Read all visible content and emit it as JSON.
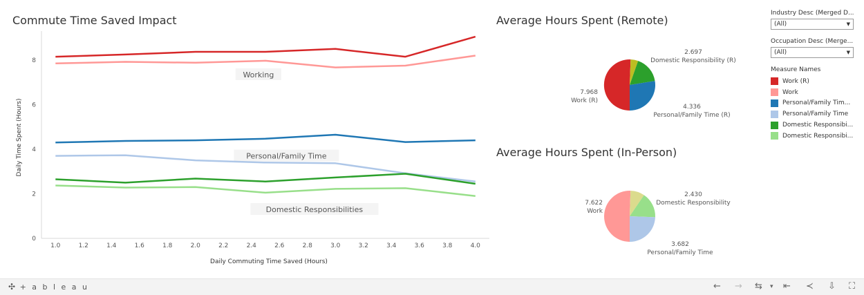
{
  "titles": {
    "line": "Commute Time Saved Impact",
    "remote": "Average Hours Spent (Remote)",
    "inperson": "Average Hours Spent (In-Person)"
  },
  "chart_data": [
    {
      "type": "line",
      "title": "Commute Time Saved Impact",
      "xlabel": "Daily Commuting Time Saved (Hours)",
      "ylabel": "Daily Time Spent (Hours)",
      "xlim": [
        0.9,
        4.1
      ],
      "ylim": [
        0,
        9.3
      ],
      "xticks": [
        "1.0",
        "1.2",
        "1.4",
        "1.6",
        "1.8",
        "2.0",
        "2.2",
        "2.4",
        "2.6",
        "2.8",
        "3.0",
        "3.2",
        "3.4",
        "3.6",
        "3.8",
        "4.0"
      ],
      "yticks": [
        "0",
        "2",
        "4",
        "6",
        "8"
      ],
      "x": [
        1.0,
        1.5,
        2.0,
        2.5,
        3.0,
        3.5,
        4.0
      ],
      "series": [
        {
          "name": "Work (R)",
          "color": "#d62728",
          "values": [
            8.15,
            8.25,
            8.37,
            8.37,
            8.5,
            8.15,
            9.05
          ]
        },
        {
          "name": "Work",
          "color": "#ff9896",
          "values": [
            7.85,
            7.92,
            7.88,
            7.97,
            7.67,
            7.75,
            8.2
          ]
        },
        {
          "name": "Personal/Family Time (R)",
          "color": "#1f77b4",
          "values": [
            4.3,
            4.37,
            4.4,
            4.47,
            4.65,
            4.32,
            4.4
          ]
        },
        {
          "name": "Personal/Family Time",
          "color": "#aec7e8",
          "values": [
            3.7,
            3.73,
            3.5,
            3.4,
            3.37,
            2.92,
            2.55
          ]
        },
        {
          "name": "Domestic Responsibility (R)",
          "color": "#2ca02c",
          "values": [
            2.65,
            2.5,
            2.68,
            2.55,
            2.73,
            2.9,
            2.45
          ]
        },
        {
          "name": "Domestic Responsibility",
          "color": "#98df8a",
          "values": [
            2.37,
            2.28,
            2.3,
            2.05,
            2.22,
            2.25,
            1.9
          ]
        }
      ],
      "annotations": [
        {
          "text": "Working",
          "x": 2.45,
          "y": 7.35
        },
        {
          "text": "Personal/Family Time",
          "x": 2.65,
          "y": 3.7
        },
        {
          "text": "Domestic Responsibilities",
          "x": 2.85,
          "y": 1.3
        }
      ]
    },
    {
      "type": "pie",
      "title": "Average Hours Spent (Remote)",
      "slices": [
        {
          "label": "Work (R)",
          "value": 7.968,
          "color": "#d62728"
        },
        {
          "label": "Personal/Family Time (R)",
          "value": 4.336,
          "color": "#1f77b4"
        },
        {
          "label": "Domestic Responsibility (R)",
          "value": 2.697,
          "color": "#2ca02c"
        },
        {
          "label": "",
          "value": 0.75,
          "color": "#bcbd22"
        }
      ],
      "labels": [
        {
          "value": "7.968",
          "name": "Work (R)"
        },
        {
          "value": "2.697",
          "name": "Domestic Responsibility (R)"
        },
        {
          "value": "4.336",
          "name": "Personal/Family Time (R)"
        }
      ]
    },
    {
      "type": "pie",
      "title": "Average Hours Spent (In-Person)",
      "slices": [
        {
          "label": "Work",
          "value": 7.622,
          "color": "#ff9896"
        },
        {
          "label": "Personal/Family Time",
          "value": 3.682,
          "color": "#aec7e8"
        },
        {
          "label": "Domestic Responsibility",
          "value": 2.43,
          "color": "#98df8a"
        },
        {
          "label": "",
          "value": 1.35,
          "color": "#dbdb8d"
        }
      ],
      "labels": [
        {
          "value": "7.622",
          "name": "Work"
        },
        {
          "value": "2.430",
          "name": "Domestic Responsibility"
        },
        {
          "value": "3.682",
          "name": "Personal/Family Time"
        }
      ]
    }
  ],
  "filters": [
    {
      "label": "Industry Desc (Merged D...",
      "value": "(All)"
    },
    {
      "label": "Occupation Desc (Merge...",
      "value": "(All)"
    }
  ],
  "legend": {
    "title": "Measure Names",
    "items": [
      {
        "label": "Work (R)",
        "color": "#d62728"
      },
      {
        "label": "Work",
        "color": "#ff9896"
      },
      {
        "label": "Personal/Family Tim...",
        "color": "#1f77b4"
      },
      {
        "label": "Personal/Family Time",
        "color": "#aec7e8"
      },
      {
        "label": "Domestic Responsibi...",
        "color": "#2ca02c"
      },
      {
        "label": "Domestic Responsibi...",
        "color": "#98df8a"
      }
    ]
  },
  "footer": {
    "logo_text": "+ a b l e a u",
    "icons": [
      "undo-icon",
      "redo-icon",
      "revert-icon",
      "dropdown-caret-icon",
      "revert-all-icon",
      "share-icon",
      "download-icon",
      "fullscreen-icon"
    ]
  }
}
